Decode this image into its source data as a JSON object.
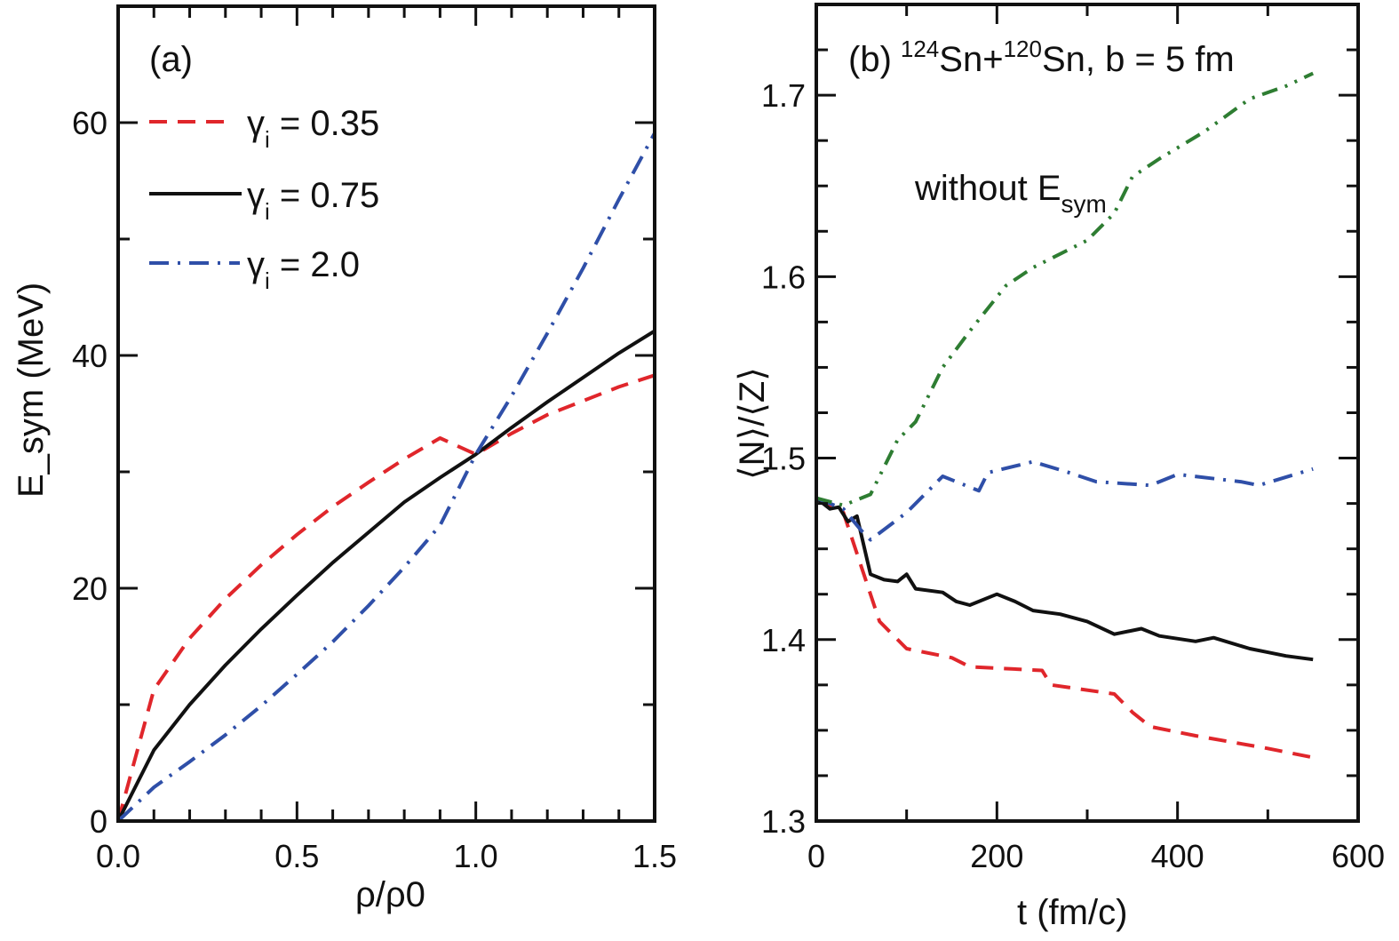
{
  "chart_data": [
    {
      "type": "line",
      "panel_label": "(a)",
      "xlabel": "ρ/ρ0",
      "ylabel": "E_sym (MeV)",
      "xlim": [
        0,
        1.5
      ],
      "ylim": [
        0,
        70
      ],
      "xticks": [
        "0.0",
        "0.5",
        "1.0",
        "1.5"
      ],
      "xtick_values": [
        0,
        0.5,
        1.0,
        1.5
      ],
      "yticks": [
        "0",
        "20",
        "40",
        "60"
      ],
      "ytick_values": [
        0,
        20,
        40,
        60
      ],
      "legend": "top-left",
      "x": [
        0,
        0.1,
        0.2,
        0.3,
        0.4,
        0.5,
        0.6,
        0.7,
        0.8,
        0.9,
        1.0,
        1.1,
        1.2,
        1.3,
        1.4,
        1.5
      ],
      "series": [
        {
          "name": "γi = 0.35",
          "style": "dashed",
          "color": "#e0262b",
          "values": [
            0,
            11.3,
            15.7,
            19.1,
            22.0,
            24.6,
            27.0,
            29.1,
            31.1,
            32.9,
            31.5,
            33.3,
            34.9,
            36.1,
            37.3,
            38.3
          ]
        },
        {
          "name": "γi = 0.75",
          "style": "solid",
          "color": "#111111",
          "values": [
            0,
            6.1,
            10.0,
            13.4,
            16.5,
            19.4,
            22.2,
            24.8,
            27.4,
            29.5,
            31.5,
            33.8,
            36.0,
            38.1,
            40.2,
            42.1
          ]
        },
        {
          "name": "γi = 2.0",
          "style": "dashdot",
          "color": "#2f4fa8",
          "values": [
            0,
            2.9,
            5.1,
            7.4,
            9.9,
            12.6,
            15.4,
            18.5,
            21.8,
            25.4,
            31.5,
            36.5,
            41.9,
            47.5,
            53.4,
            59.1
          ]
        }
      ],
      "legend_entries": [
        {
          "label": "γ",
          "sub": "i",
          "rest": " = 0.35"
        },
        {
          "label": "γ",
          "sub": "i",
          "rest": " = 0.75"
        },
        {
          "label": "γ",
          "sub": "i",
          "rest": " = 2.0"
        }
      ]
    },
    {
      "type": "line",
      "panel_label": "(b)",
      "title_parts": {
        "a": "124",
        "b": "Sn+",
        "c": "120",
        "d": "Sn, b = 5 fm"
      },
      "annotation": {
        "text": "without E",
        "sub": "sym"
      },
      "xlabel": "t (fm/c)",
      "ylabel": "⟨N⟩/⟨Z⟩",
      "xlim": [
        0,
        600
      ],
      "ylim": [
        1.3,
        1.75
      ],
      "xticks": [
        "0",
        "200",
        "400",
        "600"
      ],
      "xtick_values": [
        0,
        200,
        400,
        600
      ],
      "yticks": [
        "1.3",
        "1.4",
        "1.5",
        "1.6",
        "1.7"
      ],
      "ytick_values": [
        1.3,
        1.4,
        1.5,
        1.6,
        1.7
      ],
      "series": [
        {
          "name": "γi = 0.35",
          "style": "dashed",
          "color": "#e0262b",
          "x": [
            0,
            30,
            50,
            70,
            100,
            150,
            170,
            250,
            260,
            330,
            350,
            370,
            420,
            500,
            550
          ],
          "values": [
            1.478,
            1.47,
            1.44,
            1.41,
            1.395,
            1.39,
            1.385,
            1.383,
            1.375,
            1.37,
            1.36,
            1.352,
            1.347,
            1.34,
            1.335
          ]
        },
        {
          "name": "γi = 0.75",
          "style": "solid",
          "color": "#111111",
          "x": [
            0,
            15,
            25,
            35,
            45,
            60,
            75,
            90,
            100,
            110,
            140,
            155,
            170,
            200,
            220,
            240,
            270,
            300,
            330,
            360,
            380,
            420,
            440,
            480,
            500,
            520,
            550
          ],
          "values": [
            1.478,
            1.472,
            1.473,
            1.465,
            1.468,
            1.436,
            1.433,
            1.432,
            1.436,
            1.428,
            1.426,
            1.421,
            1.419,
            1.425,
            1.421,
            1.416,
            1.414,
            1.41,
            1.403,
            1.406,
            1.402,
            1.399,
            1.401,
            1.395,
            1.393,
            1.391,
            1.389
          ]
        },
        {
          "name": "γi = 2.0",
          "style": "dashdot",
          "color": "#2f4fa8",
          "x": [
            0,
            30,
            50,
            60,
            100,
            140,
            180,
            190,
            240,
            280,
            310,
            370,
            400,
            470,
            490,
            550
          ],
          "values": [
            1.478,
            1.472,
            1.46,
            1.455,
            1.47,
            1.49,
            1.482,
            1.492,
            1.498,
            1.492,
            1.487,
            1.485,
            1.491,
            1.487,
            1.485,
            1.494
          ]
        },
        {
          "name": "without E_sym",
          "style": "dashdotdot",
          "color": "#2e7d32",
          "x": [
            0,
            30,
            50,
            60,
            90,
            110,
            140,
            170,
            210,
            240,
            300,
            330,
            350,
            380,
            430,
            480,
            520,
            550
          ],
          "values": [
            1.478,
            1.474,
            1.478,
            1.48,
            1.51,
            1.52,
            1.55,
            1.57,
            1.595,
            1.605,
            1.62,
            1.635,
            1.655,
            1.665,
            1.68,
            1.698,
            1.705,
            1.712
          ]
        }
      ]
    }
  ]
}
